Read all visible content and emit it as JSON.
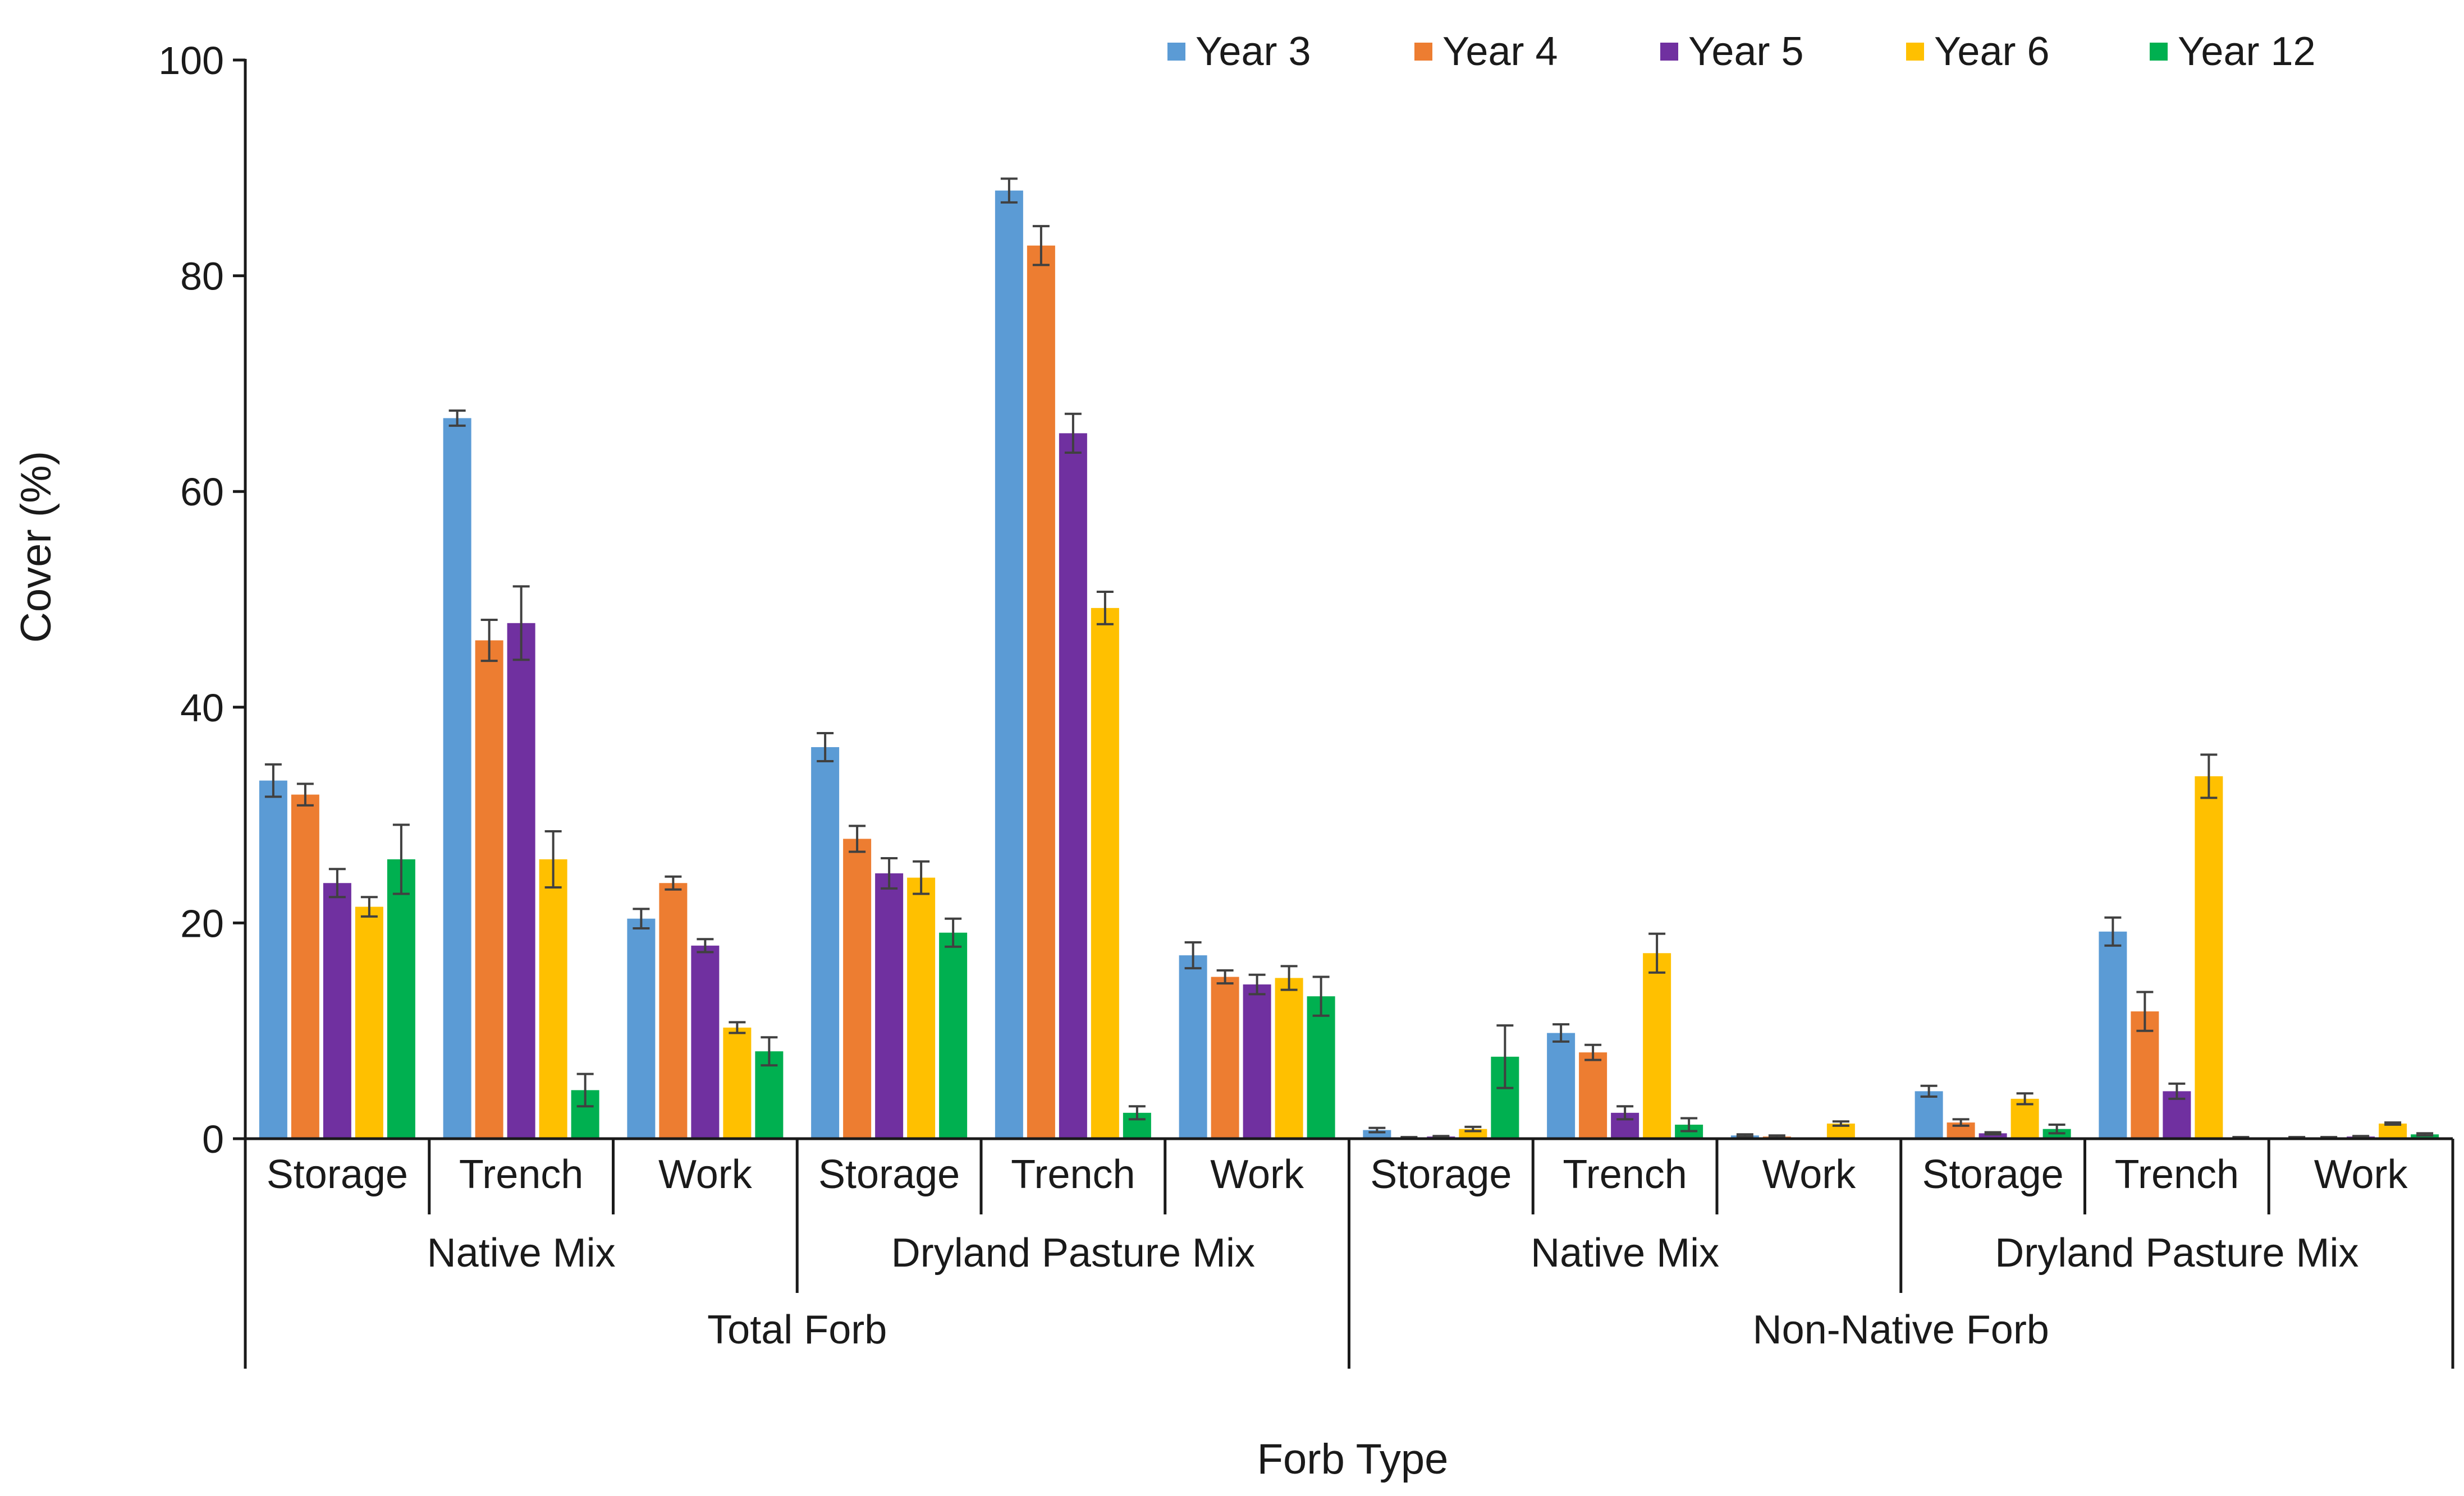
{
  "chart_data": {
    "type": "bar",
    "title": "",
    "xlabel": "Forb Type",
    "ylabel": "Cover (%)",
    "ylim": [
      0,
      100
    ],
    "yticks": [
      0,
      20,
      40,
      60,
      80,
      100
    ],
    "grid": false,
    "legend_position": "top-right",
    "level1": [
      "Storage",
      "Trench",
      "Work",
      "Storage",
      "Trench",
      "Work",
      "Storage",
      "Trench",
      "Work",
      "Storage",
      "Trench",
      "Work"
    ],
    "level2": [
      "Native Mix",
      "Dryland Pasture Mix",
      "Native Mix",
      "Dryland Pasture Mix"
    ],
    "level3": [
      "Total Forb",
      "Non-Native Forb"
    ],
    "series": [
      {
        "name": "Year 3",
        "color": "#5b9bd5",
        "values": [
          33.2,
          66.8,
          20.4,
          36.3,
          87.9,
          17.0,
          0.8,
          9.8,
          0.3,
          4.4,
          19.2,
          0.1
        ],
        "errors": [
          1.5,
          0.7,
          0.9,
          1.3,
          1.1,
          1.2,
          0.2,
          0.8,
          0.1,
          0.5,
          1.3,
          0.05
        ]
      },
      {
        "name": "Year 4",
        "color": "#ed7d31",
        "values": [
          31.9,
          46.2,
          23.7,
          27.8,
          82.8,
          15.0,
          0.1,
          8.0,
          0.2,
          1.5,
          11.8,
          0.1
        ],
        "errors": [
          1.0,
          1.9,
          0.6,
          1.2,
          1.8,
          0.6,
          0.05,
          0.7,
          0.1,
          0.3,
          1.8,
          0.05
        ]
      },
      {
        "name": "Year 5",
        "color": "#7030a0",
        "values": [
          23.7,
          47.8,
          17.9,
          24.6,
          65.4,
          14.3,
          0.2,
          2.4,
          0.0,
          0.5,
          4.4,
          0.2
        ],
        "errors": [
          1.3,
          3.4,
          0.6,
          1.4,
          1.8,
          0.9,
          0.05,
          0.6,
          0.0,
          0.1,
          0.7,
          0.05
        ]
      },
      {
        "name": "Year 6",
        "color": "#ffc000",
        "values": [
          21.5,
          25.9,
          10.3,
          24.2,
          49.2,
          14.9,
          0.9,
          17.2,
          1.4,
          3.7,
          33.6,
          1.4
        ],
        "errors": [
          0.9,
          2.6,
          0.5,
          1.5,
          1.5,
          1.1,
          0.2,
          1.8,
          0.2,
          0.5,
          2.0,
          0.1
        ]
      },
      {
        "name": "Year 12",
        "color": "#00b050",
        "values": [
          25.9,
          4.5,
          8.1,
          19.1,
          2.4,
          13.2,
          7.6,
          1.3,
          0.0,
          0.9,
          0.1,
          0.4
        ],
        "errors": [
          3.2,
          1.5,
          1.3,
          1.3,
          0.6,
          1.8,
          2.9,
          0.6,
          0.0,
          0.4,
          0.05,
          0.1
        ]
      }
    ]
  }
}
